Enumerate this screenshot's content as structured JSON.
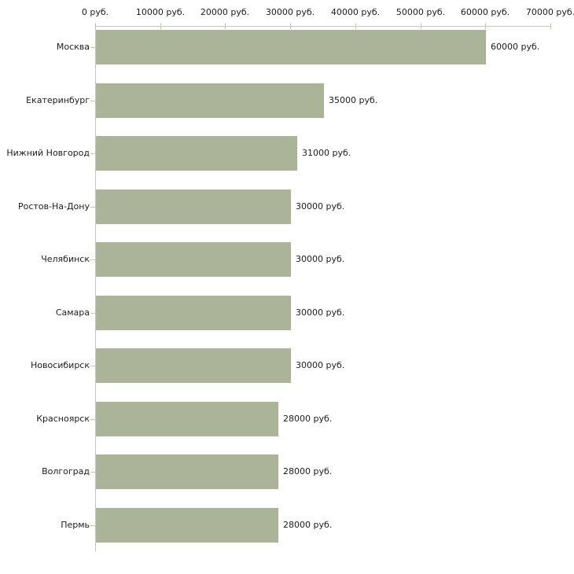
{
  "chart_data": {
    "type": "bar",
    "orientation": "horizontal",
    "title": "",
    "xlabel": "",
    "ylabel": "",
    "categories": [
      "Москва",
      "Екатеринбург",
      "Нижний Новгород",
      "Ростов-На-Дону",
      "Челябинск",
      "Самара",
      "Новосибирск",
      "Красноярск",
      "Волгоград",
      "Пермь"
    ],
    "values": [
      60000,
      35000,
      31000,
      30000,
      30000,
      30000,
      30000,
      28000,
      28000,
      28000
    ],
    "value_labels": [
      "60000 руб.",
      "35000 руб.",
      "31000 руб.",
      "30000 руб.",
      "30000 руб.",
      "30000 руб.",
      "30000 руб.",
      "28000 руб.",
      "28000 руб.",
      "28000 руб."
    ],
    "x_ticks": [
      0,
      10000,
      20000,
      30000,
      40000,
      50000,
      60000,
      70000
    ],
    "x_tick_labels": [
      "0 руб.",
      "10000 руб.",
      "20000 руб.",
      "30000 руб.",
      "40000 руб.",
      "50000 руб.",
      "60000 руб.",
      "70000 руб."
    ],
    "xlim": [
      0,
      70000
    ],
    "unit_suffix": " руб.",
    "grid": false,
    "legend": false,
    "colors": {
      "bar_fill": "#abb399",
      "axis_line": "#c6c6c6",
      "tick_mark": "#cbc7a0",
      "text": "#1c1c1c",
      "background": "#ffffff"
    }
  }
}
